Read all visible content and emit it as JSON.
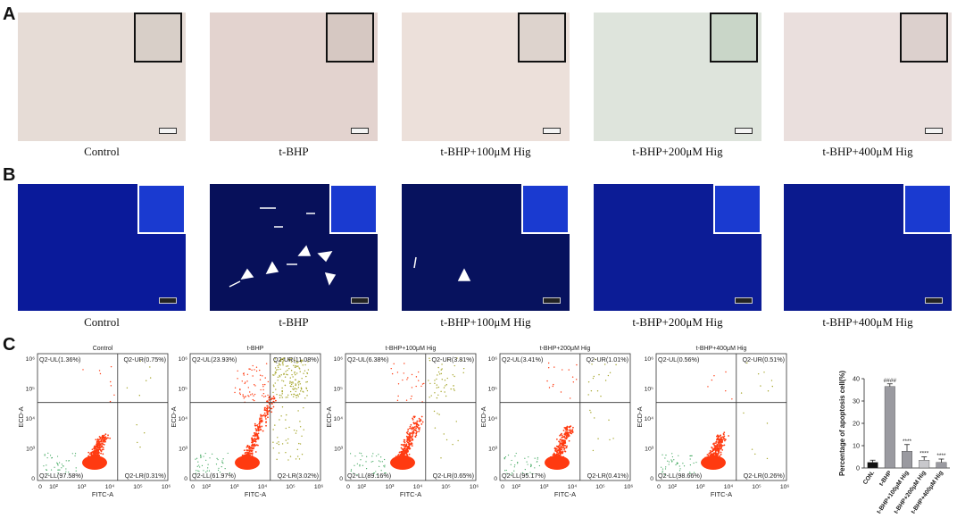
{
  "panels": {
    "a": "A",
    "b": "B",
    "c": "C"
  },
  "groups": [
    "Control",
    "t-BHP",
    "t-BHP+100μM Hig",
    "t-BHP+200μM Hig",
    "t-BHP+400μM Hig"
  ],
  "flow": {
    "xlabel": "FITC-A",
    "ylabel": "ECD-A",
    "x_ticks": [
      "0",
      "10²",
      "10³",
      "10⁴",
      "10⁵",
      "10⁶"
    ],
    "y_ticks": [
      "0",
      "10³",
      "10⁴",
      "10⁵",
      "10⁶"
    ],
    "plots": [
      {
        "title": "Control",
        "ul": "Q2-UL(1.36%)",
        "ur": "Q2-UR(0.75%)",
        "ll": "Q2-LL(97.58%)",
        "lr": "Q2-LR(0.31%)"
      },
      {
        "title": "t-BHP",
        "ul": "Q2-UL(23.93%)",
        "ur": "Q2-UR(11.08%)",
        "ll": "Q2-LL(61.97%)",
        "lr": "Q2-LR(3.02%)"
      },
      {
        "title": "t-BHP+100μM Hig",
        "ul": "Q2-UL(6.38%)",
        "ur": "Q2-UR(3.81%)",
        "ll": "Q2-LL(89.16%)",
        "lr": "Q2-LR(0.65%)"
      },
      {
        "title": "t-BHP+200μM Hig",
        "ul": "Q2-UL(3.41%)",
        "ur": "Q2-UR(1.01%)",
        "ll": "Q2-LL(95.17%)",
        "lr": "Q2-LR(0.41%)"
      },
      {
        "title": "t-BHP+400μM Hig",
        "ul": "Q2-UL(0.56%)",
        "ur": "Q2-UR(0.51%)",
        "ll": "Q2-LL(98.66%)",
        "lr": "Q2-LR(0.26%)"
      }
    ]
  },
  "chart_data": {
    "type": "bar",
    "ylabel": "Percentage of apoptosis cell(%)",
    "ylim": [
      0,
      40
    ],
    "y_ticks": [
      "0",
      "10",
      "20",
      "30",
      "40"
    ],
    "categories": [
      "CON.",
      "t-BHP",
      "t-BHP+100μM Hig",
      "t-BHP+200μM Hig",
      "t-BHP+400μM Hig"
    ],
    "values": [
      2.5,
      36.5,
      7.5,
      3.5,
      2.5
    ],
    "errors": [
      1.0,
      1.2,
      3.0,
      1.5,
      1.5
    ],
    "annotations": [
      "",
      "####",
      "****",
      "****",
      "****"
    ],
    "colors": [
      "#111111",
      "#9a9aa0",
      "#9a9aa0",
      "#c8c8cc",
      "#9a9aa0"
    ]
  }
}
